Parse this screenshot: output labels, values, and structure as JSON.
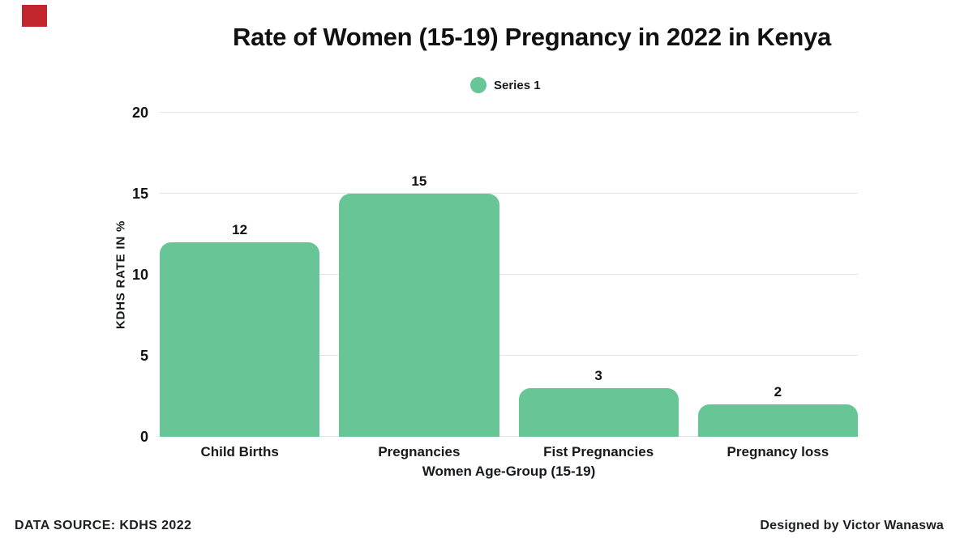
{
  "accent": {
    "brand_square_color": "#c1262d"
  },
  "title": {
    "text": "Rate of Women (15-19) Pregnancy in 2022 in Kenya"
  },
  "legend": {
    "series_label": "Series 1",
    "swatch_color": "#67c596"
  },
  "chart_data": {
    "type": "bar",
    "title": "Rate of Women (15-19) Pregnancy in 2022 in Kenya",
    "categories": [
      "Child Births",
      "Pregnancies",
      "Fist Pregnancies",
      "Pregnancy loss"
    ],
    "series": [
      {
        "name": "Series 1",
        "values": [
          12,
          15,
          3,
          2
        ]
      }
    ],
    "data_labels": [
      "12",
      "15",
      "3",
      "2"
    ],
    "xlabel": "Women Age-Group (15-19)",
    "ylabel": "KDHS RATE IN %",
    "ylim": [
      0,
      20
    ],
    "yticks": [
      0,
      5,
      10,
      15,
      20
    ],
    "bar_color": "#67c596",
    "gridline_color": "#e3e3e3",
    "grid": "horizontal",
    "legend_position": "top-center"
  },
  "footer": {
    "source_text": "DATA SOURCE: KDHS 2022",
    "credit_text": "Designed by Victor Wanaswa"
  }
}
